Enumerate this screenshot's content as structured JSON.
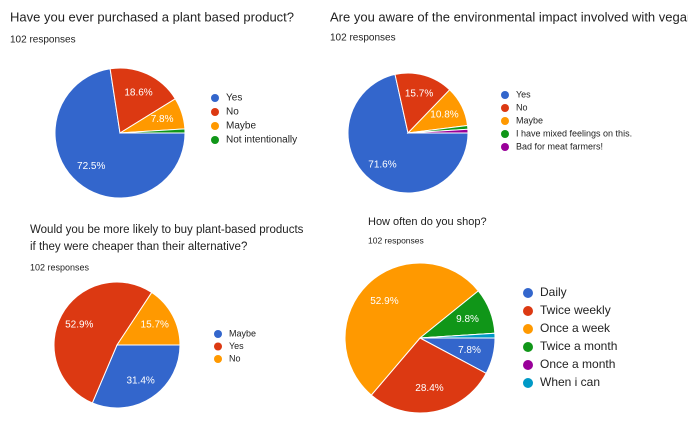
{
  "chart_data": [
    {
      "type": "pie",
      "title": [
        "Have you ever purchased a plant based product?"
      ],
      "subtitle": "102 responses",
      "categories": [
        "Yes",
        "No",
        "Maybe",
        "Not intentionally"
      ],
      "values": [
        72.5,
        18.6,
        7.8,
        1.0
      ],
      "value_labels": [
        "72.5%",
        "18.6%",
        "7.8%",
        null
      ],
      "colors": [
        "#3366cc",
        "#dc3912",
        "#ff9900",
        "#109618"
      ]
    },
    {
      "type": "pie",
      "title": [
        "Are you aware of the environmental impact involved with veganism?"
      ],
      "subtitle": "102 responses",
      "categories": [
        "Yes",
        "No",
        "Maybe",
        "I have mixed feelings on this.",
        "Bad for meat farmers!"
      ],
      "values": [
        71.6,
        15.7,
        10.8,
        1.0,
        1.0
      ],
      "value_labels": [
        "71.6%",
        "15.7%",
        "10.8%",
        null,
        null
      ],
      "colors": [
        "#3366cc",
        "#dc3912",
        "#ff9900",
        "#109618",
        "#990099"
      ]
    },
    {
      "type": "pie",
      "title": [
        "Would you be more likely to buy plant-based products",
        "if they were cheaper than their alternative?"
      ],
      "subtitle": "102 responses",
      "categories": [
        "Maybe",
        "Yes",
        "No"
      ],
      "values": [
        31.4,
        52.9,
        15.7
      ],
      "value_labels": [
        "31.4%",
        "52.9%",
        "15.7%"
      ],
      "colors": [
        "#3366cc",
        "#dc3912",
        "#ff9900"
      ]
    },
    {
      "type": "pie",
      "title": [
        "How often do you shop?"
      ],
      "subtitle": "102 responses",
      "categories": [
        "Daily",
        "Twice weekly",
        "Once a week",
        "Twice a month",
        "Once a month",
        "When i can"
      ],
      "values": [
        7.8,
        28.4,
        52.9,
        9.8,
        0,
        1.0
      ],
      "value_labels": [
        "7.8%",
        "28.4%",
        "52.9%",
        "9.8%",
        null,
        null
      ],
      "colors": [
        "#3366cc",
        "#dc3912",
        "#ff9900",
        "#109618",
        "#990099",
        "#0099c6"
      ]
    }
  ]
}
